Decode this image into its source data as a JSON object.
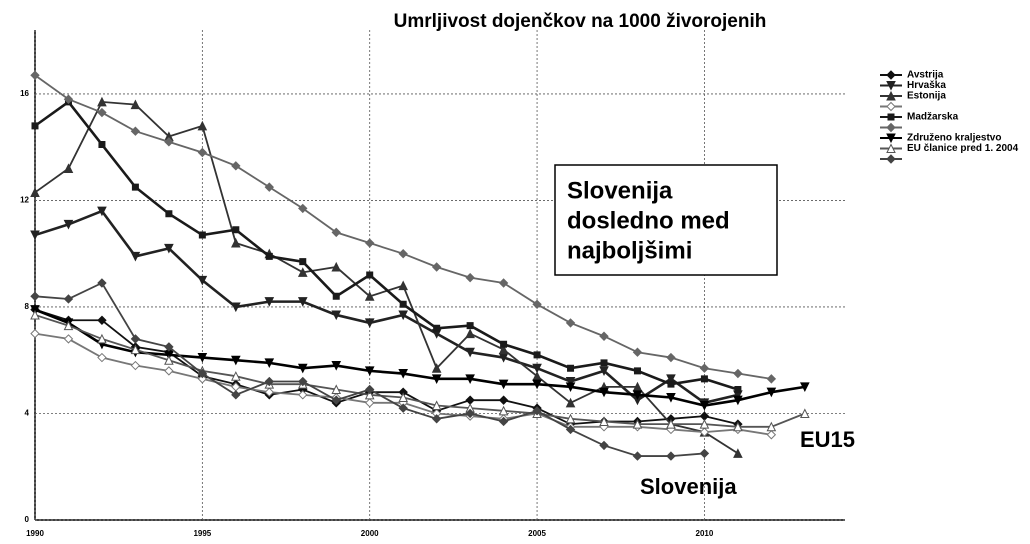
{
  "chart_data": {
    "type": "line",
    "title": "Umrljivost dojenčkov na 1000 živorojenih",
    "x": [
      1990,
      1991,
      1992,
      1993,
      1994,
      1995,
      1996,
      1997,
      1998,
      1999,
      2000,
      2001,
      2002,
      2003,
      2004,
      2005,
      2006,
      2007,
      2008,
      2009,
      2010,
      2011,
      2012,
      2013
    ],
    "xlim": [
      1990,
      2014.2
    ],
    "xticks": [
      1990,
      1995,
      2000,
      2005,
      2010
    ],
    "ylim": [
      0,
      18.4
    ],
    "yticks": [
      0,
      4,
      8,
      12,
      16
    ],
    "grid": true,
    "legend": "right",
    "callout": [
      "Slovenija",
      "dosledno med",
      "najboljšimi"
    ],
    "annotations": [
      "EU15",
      "Slovenija"
    ],
    "series": [
      {
        "name": "Avstrija",
        "color": "#111111",
        "marker": "diamond",
        "values": [
          7.9,
          7.5,
          7.5,
          6.5,
          6.3,
          5.4,
          5.1,
          4.7,
          4.9,
          4.4,
          4.8,
          4.8,
          4.1,
          4.5,
          4.5,
          4.2,
          3.6,
          3.7,
          3.7,
          3.8,
          3.9,
          3.6,
          null,
          null
        ]
      },
      {
        "name": "Hrvaška",
        "color": "#222222",
        "marker": "tri-down",
        "values": [
          10.7,
          11.1,
          11.6,
          9.9,
          10.2,
          9.0,
          8.0,
          8.2,
          8.2,
          7.7,
          7.4,
          7.7,
          7.0,
          6.3,
          6.1,
          5.7,
          5.2,
          5.6,
          4.5,
          5.3,
          4.4,
          4.7,
          null,
          null
        ]
      },
      {
        "name": "Estonija",
        "color": "#333333",
        "marker": "tri-up",
        "values": [
          12.3,
          13.2,
          15.7,
          15.6,
          14.4,
          14.8,
          10.4,
          10.0,
          9.3,
          9.5,
          8.4,
          8.8,
          5.7,
          7.0,
          6.4,
          5.4,
          4.4,
          5.0,
          5.0,
          3.6,
          3.3,
          2.5,
          null,
          null
        ]
      },
      {
        "color": "#777777",
        "marker": "open-diamond",
        "values": [
          7.0,
          6.8,
          6.1,
          5.8,
          5.6,
          5.3,
          5.0,
          4.8,
          4.7,
          4.6,
          4.4,
          4.4,
          4.0,
          3.9,
          3.8,
          4.0,
          3.5,
          3.5,
          3.5,
          3.4,
          3.3,
          3.4,
          3.2,
          null
        ]
      },
      {
        "name": "Madžarska",
        "color": "#1a1a1a",
        "marker": "square",
        "values": [
          14.8,
          15.7,
          14.1,
          12.5,
          11.5,
          10.7,
          10.9,
          9.9,
          9.7,
          8.4,
          9.2,
          8.1,
          7.2,
          7.3,
          6.6,
          6.2,
          5.7,
          5.9,
          5.6,
          5.1,
          5.3,
          4.9,
          null,
          null
        ]
      },
      {
        "color": "#666666",
        "marker": "diamond",
        "values": [
          16.7,
          15.8,
          15.3,
          14.6,
          14.2,
          13.8,
          13.3,
          12.5,
          11.7,
          10.8,
          10.4,
          10.0,
          9.5,
          9.1,
          8.9,
          8.1,
          7.4,
          6.9,
          6.3,
          6.1,
          5.7,
          5.5,
          5.3,
          null
        ]
      },
      {
        "name": "Združeno kraljestvo",
        "color": "#000000",
        "marker": "tri-down",
        "values": [
          7.9,
          7.4,
          6.6,
          6.3,
          6.2,
          6.1,
          6.0,
          5.9,
          5.7,
          5.8,
          5.6,
          5.5,
          5.3,
          5.3,
          5.1,
          5.1,
          5.0,
          4.8,
          4.7,
          4.6,
          4.3,
          4.5,
          4.8,
          5.0
        ]
      },
      {
        "name": "EU članice pred 1. 2004",
        "color": "#555555",
        "marker": "open-tri",
        "values": [
          7.7,
          7.3,
          6.8,
          6.4,
          6.0,
          5.6,
          5.4,
          5.1,
          5.1,
          4.9,
          4.7,
          4.6,
          4.3,
          4.2,
          4.1,
          4.0,
          3.8,
          3.7,
          3.6,
          3.6,
          3.6,
          3.5,
          3.5,
          4.0
        ]
      },
      {
        "color": "#444444",
        "marker": "diamond",
        "values": [
          8.4,
          8.3,
          8.9,
          6.8,
          6.5,
          5.5,
          4.7,
          5.2,
          5.2,
          4.5,
          4.9,
          4.2,
          3.8,
          4.0,
          3.7,
          4.1,
          3.4,
          2.8,
          2.4,
          2.4,
          2.5,
          null,
          null,
          null
        ]
      }
    ]
  }
}
